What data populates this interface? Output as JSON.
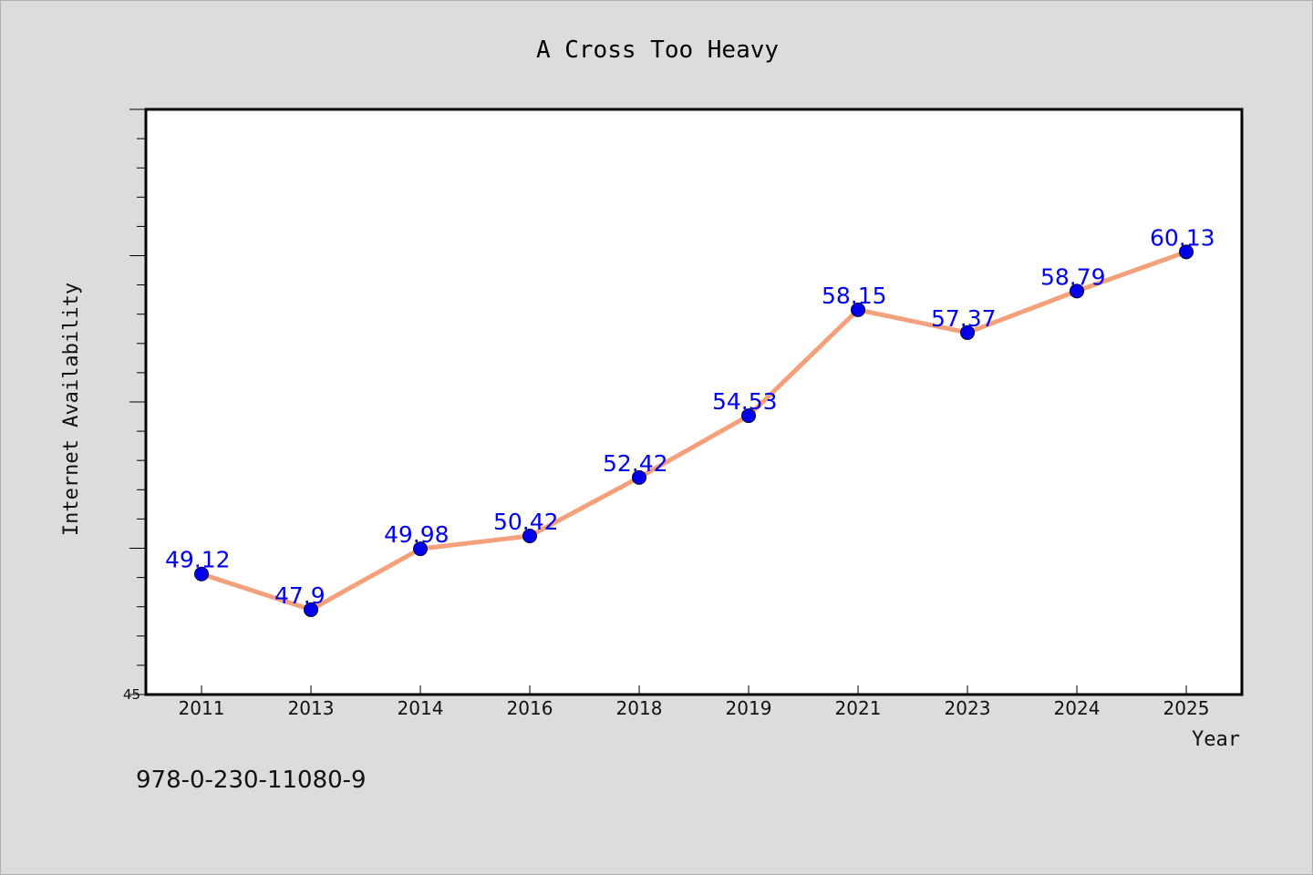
{
  "chart_data": {
    "type": "line",
    "title": "A Cross Too Heavy",
    "xlabel": "Year",
    "ylabel": "Internet Availability",
    "categories": [
      "2011",
      "2013",
      "2014",
      "2016",
      "2018",
      "2019",
      "2021",
      "2023",
      "2024",
      "2025"
    ],
    "series": [
      {
        "values": [
          49.12,
          47.9,
          49.98,
          50.42,
          52.42,
          54.53,
          58.15,
          57.37,
          58.79,
          60.13
        ],
        "data_labels": [
          "49.12",
          "47.9",
          "49.98",
          "50.42",
          "52.42",
          "54.53",
          "58.15",
          "57.37",
          "58.79",
          "60.13"
        ],
        "line_color": "#f4a07a",
        "marker_color": "#0000ee"
      }
    ],
    "ylim": [
      45,
      65
    ],
    "y_tick_labels": [
      {
        "value": 45,
        "label": "45"
      }
    ],
    "y_minor_step": 1,
    "y_major_step": 5,
    "grid": false,
    "legend": "none",
    "label_color": "#0000ee",
    "background": "#dcdcdc",
    "plot_background": "#ffffff"
  },
  "footer": {
    "isbn": "978-0-230-11080-9"
  }
}
